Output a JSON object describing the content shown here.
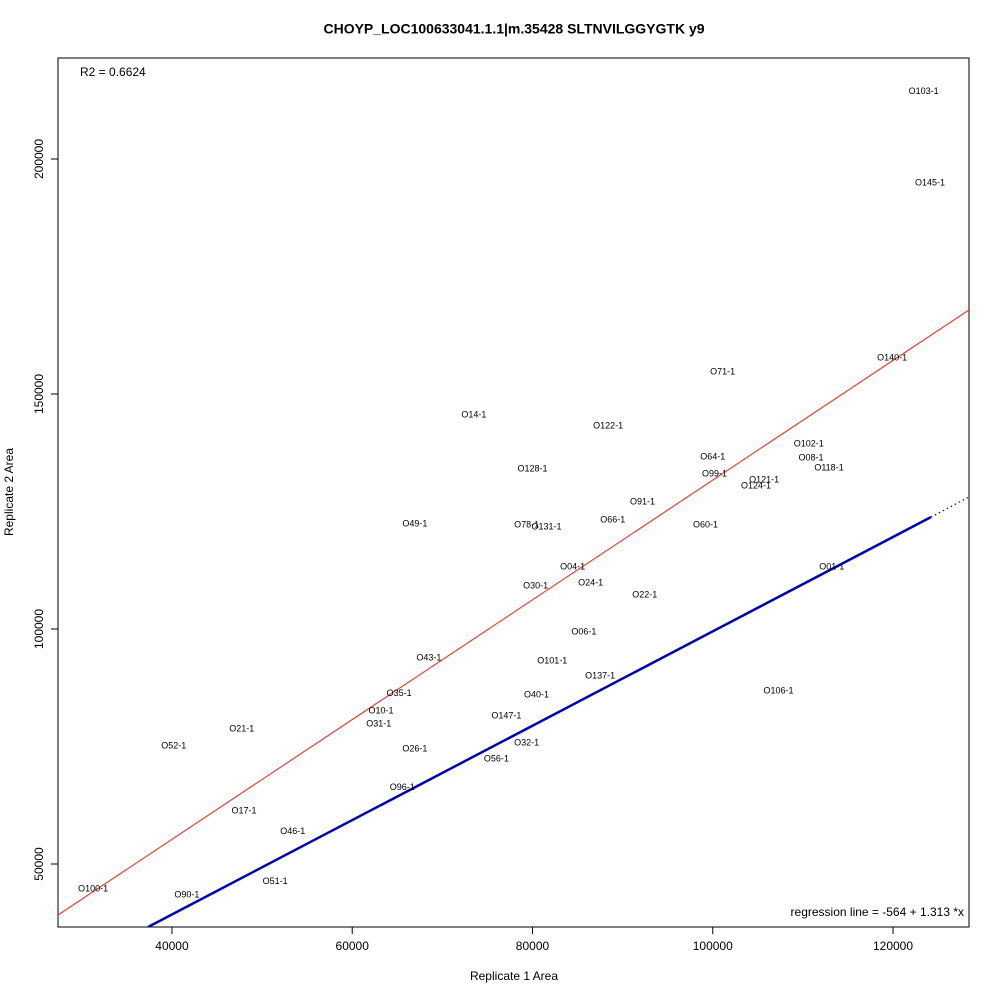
{
  "chart_data": {
    "type": "scatter",
    "title": "CHOYP_LOC100633041.1.1|m.35428 SLTNVILGGYGTK y9",
    "x_label": "Replicate 1 Area",
    "y_label": "Replicate 2 Area",
    "annotations": [
      "R2 = 0.6624",
      "regression line = -564 + 1.313 *x"
    ],
    "xlim": [
      27357,
      128430
    ],
    "ylim": [
      36596,
      221490
    ],
    "xticks": [
      40000,
      60000,
      80000,
      100000,
      120000
    ],
    "yticks": [
      50000,
      100000,
      150000,
      200000
    ],
    "point_color": "#000000",
    "labels": [
      "O103-1",
      "O145-1",
      "O140-1",
      "O71-1",
      "O14-1",
      "O122-1",
      "O102-1",
      "O64-1",
      "O08-1",
      "O128-1",
      "O118-1",
      "O99-1",
      "O121-1",
      "O124-1",
      "O91-1",
      "O49-1",
      "O78-1",
      "O66-1",
      "O131-1",
      "O60-1",
      "O04-1",
      "O01-1",
      "O24-1",
      "O30-1",
      "O22-1",
      "O06-1",
      "O101-1",
      "O43-1",
      "O137-1",
      "O106-1",
      "O35-1",
      "O40-1",
      "O10-1",
      "O147-1",
      "O31-1",
      "O21-1",
      "O52-1",
      "O26-1",
      "O32-1",
      "O56-1",
      "O96-1",
      "O17-1",
      "O46-1",
      "O51-1",
      "O100-1",
      "O90-1"
    ],
    "x": [
      123400,
      124100,
      119900,
      101100,
      73500,
      88400,
      110650,
      100000,
      110900,
      80000,
      112900,
      100200,
      105700,
      104800,
      92200,
      66950,
      79350,
      88900,
      81550,
      99200,
      84450,
      113200,
      86450,
      80350,
      92450,
      85700,
      82200,
      68500,
      87500,
      107300,
      65200,
      80450,
      63200,
      77100,
      62950,
      47750,
      40200,
      66950,
      79350,
      76000,
      65550,
      48000,
      53400,
      51450,
      31250,
      41650
    ],
    "y": [
      214300,
      194900,
      157650,
      154700,
      145500,
      143200,
      139350,
      136600,
      136400,
      134000,
      134250,
      133000,
      131700,
      130400,
      127000,
      122300,
      122100,
      123200,
      121700,
      122100,
      113200,
      113200,
      109800,
      109150,
      107250,
      99300,
      93200,
      93800,
      90000,
      86800,
      86200,
      85950,
      82550,
      81500,
      79800,
      78700,
      75100,
      74450,
      75750,
      72350,
      66200,
      61300,
      56850,
      46200,
      44700,
      43400
    ],
    "lines": [
      {
        "color": "#e8413b",
        "dashed": false,
        "x": [
          27357,
          128430
        ],
        "y": [
          39150,
          167900
        ]
      },
      {
        "color": "#0000b4",
        "dashed": false,
        "x": [
          37350,
          124200
        ],
        "y": [
          36600,
          123800
        ]
      },
      {
        "color": "#0000b4",
        "dashed": true,
        "x": [
          124200,
          128430
        ],
        "y": [
          123800,
          128100
        ]
      }
    ]
  }
}
